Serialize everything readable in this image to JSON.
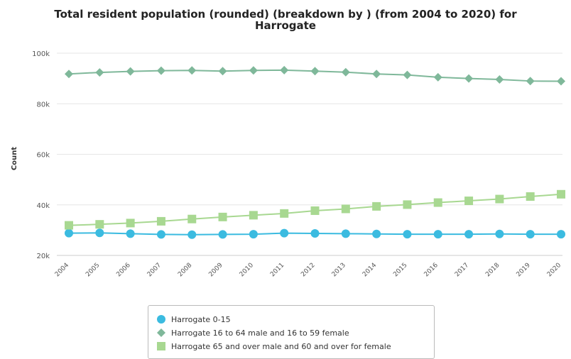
{
  "chart_data": {
    "type": "line",
    "title_line1": "Total resident population (rounded) (breakdown by ) (from 2004 to 2020) for",
    "title_line2": "Harrogate",
    "xlabel": "",
    "ylabel": "Count",
    "categories": [
      "2004",
      "2005",
      "2006",
      "2007",
      "2008",
      "2009",
      "2010",
      "2011",
      "2012",
      "2013",
      "2014",
      "2015",
      "2016",
      "2017",
      "2018",
      "2019",
      "2020"
    ],
    "ylim": [
      20000,
      100000
    ],
    "yticks": [
      {
        "value": 20000,
        "label": "20k"
      },
      {
        "value": 40000,
        "label": "40k"
      },
      {
        "value": 60000,
        "label": "60k"
      },
      {
        "value": 80000,
        "label": "80k"
      },
      {
        "value": 100000,
        "label": "100k"
      }
    ],
    "grid": true,
    "legend_position": "bottom",
    "series": [
      {
        "name": "Harrogate 0-15",
        "color": "#3bbbe0",
        "marker": "circle",
        "values": [
          28800,
          28900,
          28600,
          28300,
          28200,
          28300,
          28400,
          28800,
          28700,
          28600,
          28500,
          28400,
          28400,
          28400,
          28500,
          28400,
          28400
        ]
      },
      {
        "name": "Harrogate 16 to 64 male and 16 to 59 female",
        "color": "#7fb89a",
        "marker": "diamond",
        "values": [
          91800,
          92400,
          92800,
          93100,
          93200,
          92900,
          93200,
          93300,
          92900,
          92500,
          91800,
          91400,
          90500,
          90000,
          89600,
          89000,
          88900
        ]
      },
      {
        "name": "Harrogate 65 and over male and 60 and over for female",
        "color": "#a8d891",
        "marker": "square",
        "values": [
          31900,
          32300,
          32800,
          33500,
          34400,
          35200,
          35900,
          36600,
          37700,
          38400,
          39400,
          40100,
          40900,
          41600,
          42300,
          43300,
          44200
        ]
      }
    ]
  }
}
